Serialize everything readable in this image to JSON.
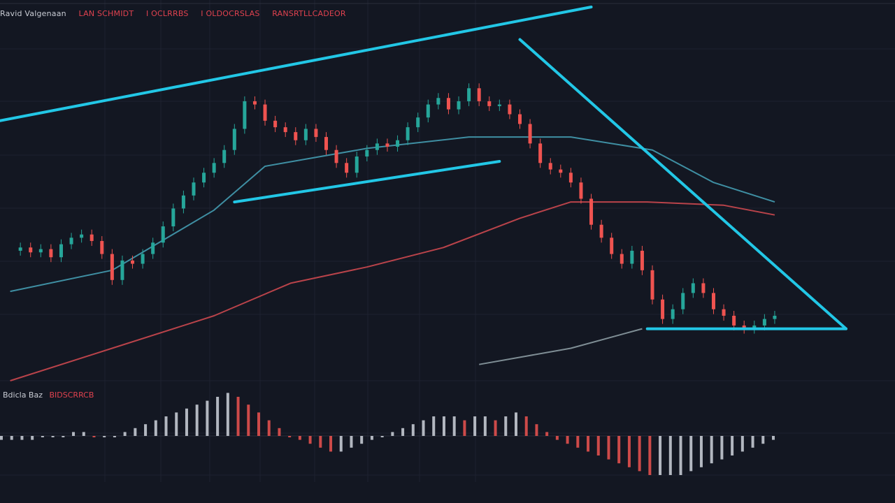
{
  "legend": {
    "main": [
      "Ravid Valgenaan",
      "LAN SCHMIDT",
      "I OCLRRBS",
      "I OLDOCRSLAS",
      "RANSRTLLCADEOR"
    ],
    "sub": [
      "Bdicla Baz",
      "BIDSCRRCB"
    ]
  },
  "colors": {
    "background": "#131722",
    "up": "#26a69a",
    "down": "#ef5350",
    "trendline": "#22c7e6",
    "ma_fast": "#3f8fa3",
    "ma_slow": "#b9434a",
    "ma_long": "#7f8e95",
    "grid": "#1e2230",
    "legend_main_first": "#c9ccd4",
    "legend_main_rest": "#e0424f",
    "legend_sub_first": "#c9ccd4",
    "legend_sub_rest": "#e0424f"
  },
  "chart_data": {
    "type": "candlestick",
    "title": "",
    "price_series": [
      {
        "x": 0,
        "y": 70
      },
      {
        "x": 2,
        "y": 72
      },
      {
        "x": 4,
        "y": 69
      },
      {
        "x": 6,
        "y": 71
      },
      {
        "x": 8,
        "y": 66
      },
      {
        "x": 10,
        "y": 74
      },
      {
        "x": 12,
        "y": 78
      },
      {
        "x": 14,
        "y": 80
      },
      {
        "x": 16,
        "y": 76
      },
      {
        "x": 18,
        "y": 68
      },
      {
        "x": 20,
        "y": 52
      },
      {
        "x": 22,
        "y": 64
      },
      {
        "x": 24,
        "y": 62
      },
      {
        "x": 26,
        "y": 68
      },
      {
        "x": 28,
        "y": 75
      },
      {
        "x": 30,
        "y": 85
      },
      {
        "x": 32,
        "y": 96
      },
      {
        "x": 34,
        "y": 104
      },
      {
        "x": 36,
        "y": 112
      },
      {
        "x": 38,
        "y": 118
      },
      {
        "x": 40,
        "y": 124
      },
      {
        "x": 42,
        "y": 132
      },
      {
        "x": 44,
        "y": 145
      },
      {
        "x": 46,
        "y": 162
      },
      {
        "x": 48,
        "y": 160
      },
      {
        "x": 50,
        "y": 150
      },
      {
        "x": 52,
        "y": 146
      },
      {
        "x": 54,
        "y": 143
      },
      {
        "x": 56,
        "y": 138
      },
      {
        "x": 58,
        "y": 145
      },
      {
        "x": 60,
        "y": 140
      },
      {
        "x": 62,
        "y": 132
      },
      {
        "x": 64,
        "y": 124
      },
      {
        "x": 66,
        "y": 118
      },
      {
        "x": 68,
        "y": 128
      },
      {
        "x": 70,
        "y": 132
      },
      {
        "x": 72,
        "y": 136
      },
      {
        "x": 74,
        "y": 134
      },
      {
        "x": 76,
        "y": 138
      },
      {
        "x": 78,
        "y": 146
      },
      {
        "x": 80,
        "y": 152
      },
      {
        "x": 82,
        "y": 160
      },
      {
        "x": 84,
        "y": 164
      },
      {
        "x": 86,
        "y": 157
      },
      {
        "x": 88,
        "y": 162
      },
      {
        "x": 90,
        "y": 170
      },
      {
        "x": 92,
        "y": 162
      },
      {
        "x": 94,
        "y": 159
      },
      {
        "x": 96,
        "y": 160
      },
      {
        "x": 98,
        "y": 154
      },
      {
        "x": 100,
        "y": 148
      },
      {
        "x": 102,
        "y": 136
      },
      {
        "x": 104,
        "y": 124
      },
      {
        "x": 106,
        "y": 120
      },
      {
        "x": 108,
        "y": 118
      },
      {
        "x": 110,
        "y": 112
      },
      {
        "x": 112,
        "y": 102
      },
      {
        "x": 114,
        "y": 86
      },
      {
        "x": 116,
        "y": 78
      },
      {
        "x": 118,
        "y": 68
      },
      {
        "x": 120,
        "y": 62
      },
      {
        "x": 122,
        "y": 70
      },
      {
        "x": 124,
        "y": 58
      },
      {
        "x": 126,
        "y": 40
      },
      {
        "x": 128,
        "y": 28
      },
      {
        "x": 130,
        "y": 34
      },
      {
        "x": 132,
        "y": 44
      },
      {
        "x": 134,
        "y": 50
      },
      {
        "x": 136,
        "y": 44
      },
      {
        "x": 138,
        "y": 34
      },
      {
        "x": 140,
        "y": 30
      },
      {
        "x": 142,
        "y": 24
      },
      {
        "x": 144,
        "y": 22
      },
      {
        "x": 146,
        "y": 24
      },
      {
        "x": 148,
        "y": 28
      },
      {
        "x": 150,
        "y": 30
      }
    ],
    "ma_fast": [
      {
        "x": 0,
        "y": 45
      },
      {
        "x": 20,
        "y": 58
      },
      {
        "x": 40,
        "y": 95
      },
      {
        "x": 50,
        "y": 122
      },
      {
        "x": 70,
        "y": 133
      },
      {
        "x": 90,
        "y": 140
      },
      {
        "x": 110,
        "y": 140
      },
      {
        "x": 126,
        "y": 132
      },
      {
        "x": 138,
        "y": 112
      },
      {
        "x": 150,
        "y": 100
      }
    ],
    "ma_slow": [
      {
        "x": 0,
        "y": -10
      },
      {
        "x": 20,
        "y": 10
      },
      {
        "x": 40,
        "y": 30
      },
      {
        "x": 55,
        "y": 50
      },
      {
        "x": 70,
        "y": 60
      },
      {
        "x": 85,
        "y": 72
      },
      {
        "x": 100,
        "y": 90
      },
      {
        "x": 110,
        "y": 100
      },
      {
        "x": 125,
        "y": 100
      },
      {
        "x": 140,
        "y": 98
      },
      {
        "x": 150,
        "y": 92
      }
    ],
    "ma_long": [
      {
        "x": 92,
        "y": 0
      },
      {
        "x": 110,
        "y": 10
      },
      {
        "x": 124,
        "y": 22
      }
    ],
    "trendlines": [
      {
        "from": {
          "x": -2,
          "y": 150
        },
        "to": {
          "x": 114,
          "y": 220
        }
      },
      {
        "from": {
          "x": 44,
          "y": 100
        },
        "to": {
          "x": 96,
          "y": 125
        }
      },
      {
        "from": {
          "x": 100,
          "y": 200
        },
        "to": {
          "x": 164,
          "y": 22
        }
      },
      {
        "from": {
          "x": 125,
          "y": 22
        },
        "to": {
          "x": 164,
          "y": 22
        }
      }
    ],
    "histogram": [
      -1,
      -1,
      -1,
      -1,
      0,
      0,
      0,
      1,
      1,
      0,
      0,
      0,
      1,
      2,
      3,
      4,
      5,
      6,
      7,
      8,
      9,
      10,
      11,
      10,
      8,
      6,
      4,
      2,
      0,
      -1,
      -2,
      -3,
      -4,
      -4,
      -3,
      -2,
      -1,
      0,
      1,
      2,
      3,
      4,
      5,
      5,
      5,
      4,
      5,
      5,
      4,
      5,
      6,
      5,
      3,
      1,
      -1,
      -2,
      -3,
      -4,
      -5,
      -6,
      -7,
      -8,
      -9,
      -10,
      -10,
      -10,
      -10,
      -9,
      -8,
      -7,
      -6,
      -5,
      -4,
      -3,
      -2,
      -1
    ]
  }
}
